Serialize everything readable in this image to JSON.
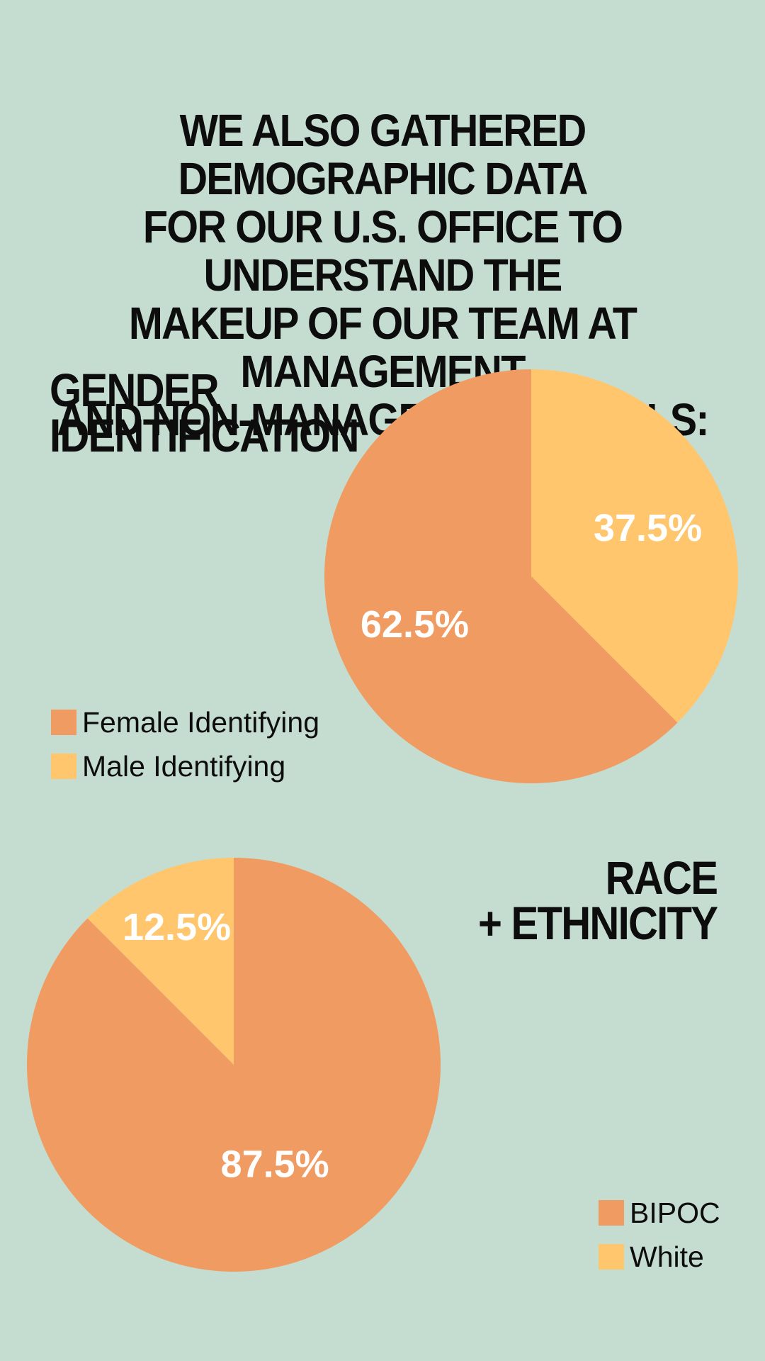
{
  "headline": {
    "lines": [
      "WE ALSO GATHERED DEMOGRAPHIC DATA",
      "FOR OUR U.S. OFFICE TO UNDERSTAND THE",
      "MAKEUP OF OUR TEAM AT MANAGEMENT",
      "AND NON-MANAGEMENT LEVELS:"
    ]
  },
  "colors": {
    "background": "#c5ddd0",
    "orange": "#f09b61",
    "yellow": "#ffc66e",
    "label": "#ffffff"
  },
  "chart_data": [
    {
      "type": "pie",
      "title_lines": [
        "GENDER",
        "IDENTIFICATION"
      ],
      "slices": [
        {
          "label": "Male Identifying",
          "value": 37.5,
          "value_label": "37.5%",
          "color": "#ffc66e"
        },
        {
          "label": "Female Identifying",
          "value": 62.5,
          "value_label": "62.5%",
          "color": "#f09b61"
        }
      ],
      "start_angle_deg": 0,
      "direction": "clockwise",
      "legend": [
        {
          "label": "Female Identifying",
          "color": "#f09b61"
        },
        {
          "label": "Male Identifying",
          "color": "#ffc66e"
        }
      ],
      "legend_position": "bottom-left"
    },
    {
      "type": "pie",
      "title_lines": [
        "RACE",
        "+ ETHNICITY"
      ],
      "slices": [
        {
          "label": "BIPOC",
          "value": 87.5,
          "value_label": "87.5%",
          "color": "#f09b61"
        },
        {
          "label": "White",
          "value": 12.5,
          "value_label": "12.5%",
          "color": "#ffc66e"
        }
      ],
      "start_angle_deg": 0,
      "direction": "clockwise",
      "legend": [
        {
          "label": "BIPOC",
          "color": "#f09b61"
        },
        {
          "label": "White",
          "color": "#ffc66e"
        }
      ],
      "legend_position": "bottom-right"
    }
  ]
}
